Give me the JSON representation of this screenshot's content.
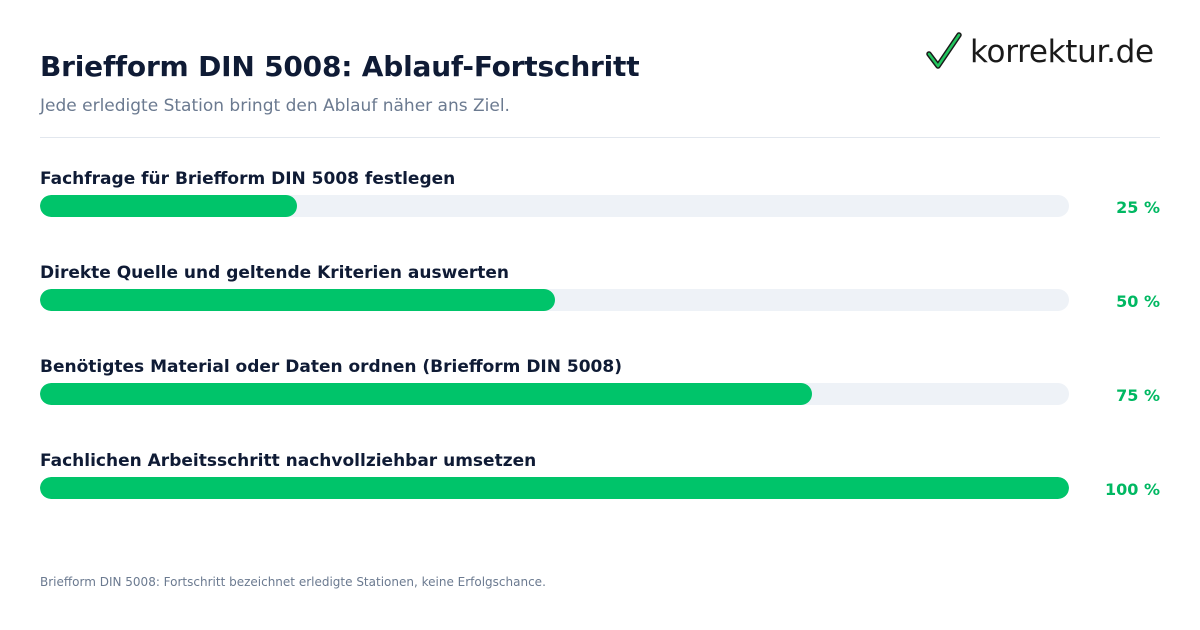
{
  "header": {
    "title": "Briefform DIN 5008: Ablauf-Fortschritt",
    "subtitle": "Jede erledigte Station bringt den Ablauf näher ans Ziel."
  },
  "logo": {
    "icon": "checkmark-icon",
    "text": "korrektur.de"
  },
  "colors": {
    "accent": "#00c46a",
    "accent_text": "#00b862",
    "track": "#eef2f7",
    "title": "#0f1b35",
    "muted": "#6b7a90"
  },
  "chart_data": {
    "type": "bar",
    "orientation": "horizontal",
    "categories": [
      "Fachfrage für Briefform DIN 5008 festlegen",
      "Direkte Quelle und geltende Kriterien auswerten",
      "Benötigtes Material oder Daten ordnen (Briefform DIN 5008)",
      "Fachlichen Arbeitsschritt nachvollziehbar umsetzen"
    ],
    "values": [
      25,
      50,
      75,
      100
    ],
    "value_labels": [
      "25 %",
      "50 %",
      "75 %",
      "100 %"
    ],
    "xlim": [
      0,
      100
    ],
    "grid": false
  },
  "footer": {
    "note": "Briefform DIN 5008: Fortschritt bezeichnet erledigte Stationen, keine Erfolgschance."
  }
}
